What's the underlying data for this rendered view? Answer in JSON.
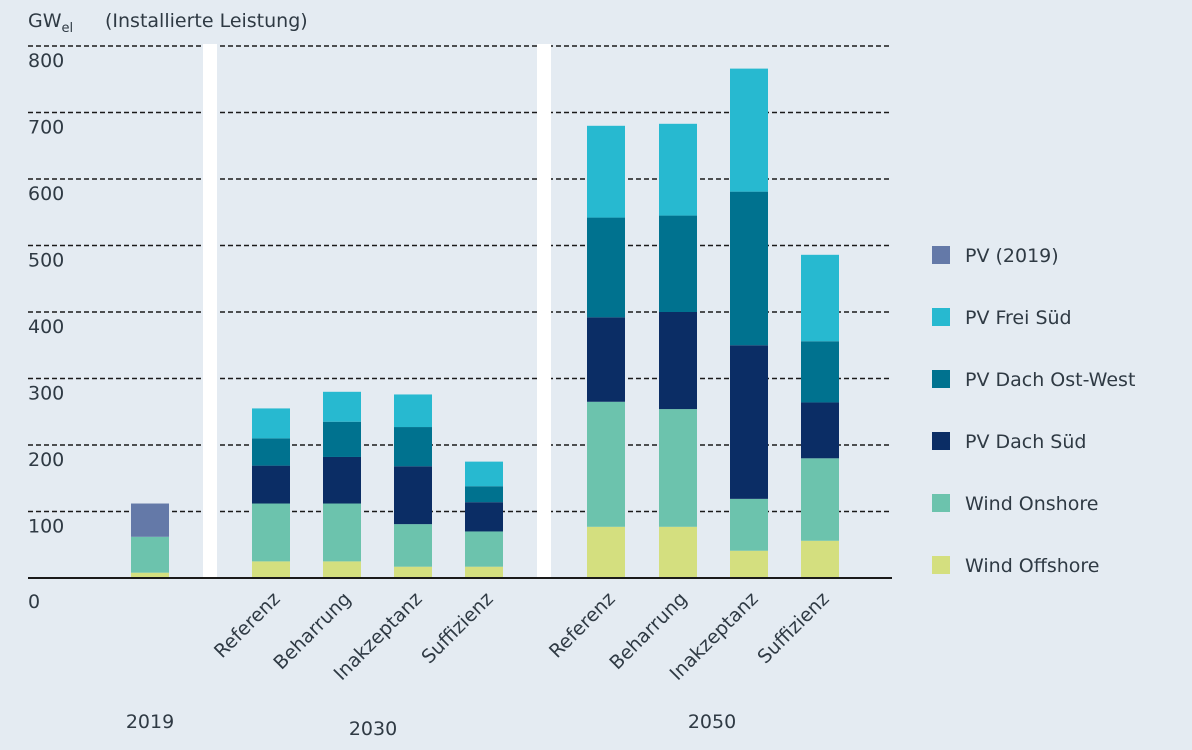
{
  "chart_data": {
    "type": "bar",
    "stacked": true,
    "ylabel": "GW",
    "ylabel_subscript": "el",
    "ylabel_note": "(Installierte Leistung)",
    "ylim": [
      0,
      800
    ],
    "yticks": [
      "0",
      "100",
      "200",
      "300",
      "400",
      "500",
      "600",
      "700",
      "800"
    ],
    "grid": "dashed horizontal",
    "legend_position": "right",
    "groups": [
      {
        "label": "2019",
        "categories": [
          ""
        ]
      },
      {
        "label": "2030",
        "categories": [
          "Referenz",
          "Beharrung",
          "Inakzeptanz",
          "Suffizienz"
        ]
      },
      {
        "label": "2050",
        "categories": [
          "Referenz",
          "Beharrung",
          "Inakzeptanz",
          "Suffizienz"
        ]
      }
    ],
    "series": [
      {
        "name": "Wind Offshore",
        "color": "#d4df7f",
        "values": [
          8,
          25,
          25,
          17,
          17,
          77,
          77,
          41,
          56
        ]
      },
      {
        "name": "Wind Onshore",
        "color": "#6cc3ad",
        "values": [
          54,
          87,
          87,
          64,
          53,
          188,
          177,
          78,
          124
        ]
      },
      {
        "name": "PV Dach Süd",
        "color": "#0b2d65",
        "values": [
          0,
          57,
          70,
          87,
          44,
          127,
          146,
          231,
          84
        ]
      },
      {
        "name": "PV Dach Ost-West",
        "color": "#00728f",
        "values": [
          0,
          41,
          53,
          59,
          24,
          150,
          145,
          231,
          92
        ]
      },
      {
        "name": "PV Frei Süd",
        "color": "#27b9d0",
        "values": [
          0,
          45,
          45,
          49,
          37,
          138,
          138,
          185,
          130
        ]
      },
      {
        "name": "PV (2019)",
        "color": "#6479a8",
        "values": [
          50,
          0,
          0,
          0,
          0,
          0,
          0,
          0,
          0
        ]
      }
    ],
    "legend_order": [
      "PV (2019)",
      "PV Frei Süd",
      "PV Dach Ost-West",
      "PV Dach Süd",
      "Wind Onshore",
      "Wind Offshore"
    ]
  }
}
